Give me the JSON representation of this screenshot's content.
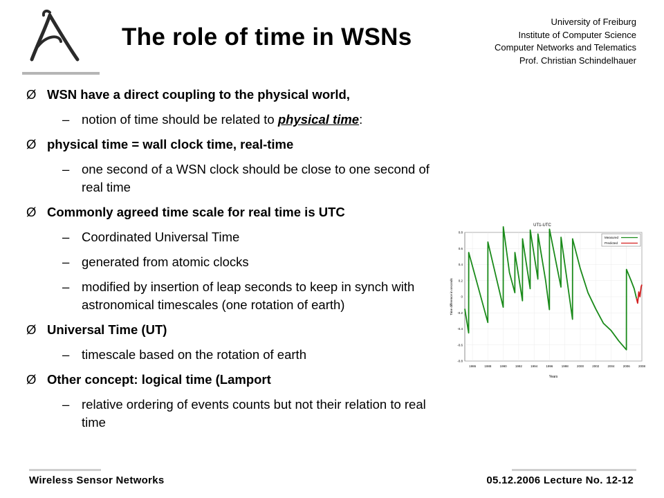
{
  "slide": {
    "title": "The role of time in WSNs",
    "affiliation": [
      "University of Freiburg",
      "Institute of Computer Science",
      "Computer Networks and Telematics",
      "Prof. Christian Schindelhauer"
    ]
  },
  "bullets": {
    "b1": "WSN have a direct coupling to the physical world,",
    "b1_sub1_pre": "notion of time should be related to ",
    "b1_sub1_em": "physical time",
    "b1_sub1_post": ":",
    "b2": "physical time = wall clock time, real-time",
    "b2_sub1": "one second of a WSN clock should be close to one second of real time",
    "b3": "Commonly agreed time scale for real time is UTC",
    "b3_sub1": "Coordinated Universal Time",
    "b3_sub2": "generated from atomic clocks",
    "b3_sub3": "modified by insertion of leap seconds to keep in synch with astronomical timescales (one rotation of earth)",
    "b4": "Universal Time (UT)",
    "b4_sub1": "timescale based on the rotation of earth",
    "b5": "Other concept: logical time (Lamport",
    "b5_sub1": "relative ordering of events counts but not their relation to real time",
    "bullet_glyph": "Ø",
    "dash_glyph": "–"
  },
  "chart_data": {
    "type": "line",
    "title": "UT1-UTC",
    "xlabel": "Years",
    "ylabel": "Time difference in seconds",
    "xlim": [
      1985,
      2008
    ],
    "ylim": [
      -0.8,
      0.8
    ],
    "xticks": [
      "1986",
      "1988",
      "1990",
      "1992",
      "1994",
      "1996",
      "1998",
      "2000",
      "2002",
      "2004",
      "2006",
      "2008"
    ],
    "yticks": [
      "0.8",
      "0.6",
      "0.4",
      "0.2",
      "0",
      "-0.2",
      "-0.4",
      "-0.6",
      "-0.8"
    ],
    "legend": "top-right",
    "series": [
      {
        "name": "Measured",
        "color": "#1a8a1a",
        "points": [
          [
            1985.0,
            -0.15
          ],
          [
            1985.5,
            -0.45
          ],
          [
            1985.51,
            0.55
          ],
          [
            1987.99,
            -0.32
          ],
          [
            1988.0,
            0.68
          ],
          [
            1989.99,
            -0.13
          ],
          [
            1990.0,
            0.87
          ],
          [
            1990.8,
            0.3
          ],
          [
            1991.5,
            0.05
          ],
          [
            1991.51,
            0.55
          ],
          [
            1992.49,
            -0.05
          ],
          [
            1992.5,
            0.72
          ],
          [
            1993.49,
            0.1
          ],
          [
            1993.5,
            0.83
          ],
          [
            1994.49,
            0.22
          ],
          [
            1994.5,
            0.78
          ],
          [
            1995.5,
            0.2
          ],
          [
            1995.99,
            -0.16
          ],
          [
            1996.0,
            0.84
          ],
          [
            1997.49,
            0.12
          ],
          [
            1997.5,
            0.74
          ],
          [
            1998.99,
            -0.28
          ],
          [
            1999.0,
            0.72
          ],
          [
            2000.0,
            0.35
          ],
          [
            2001.0,
            0.05
          ],
          [
            2002.0,
            -0.15
          ],
          [
            2003.0,
            -0.33
          ],
          [
            2004.0,
            -0.42
          ],
          [
            2005.0,
            -0.55
          ],
          [
            2005.99,
            -0.66
          ],
          [
            2006.0,
            0.34
          ],
          [
            2006.6,
            0.2
          ],
          [
            2007.0,
            0.1
          ],
          [
            2007.3,
            -0.02
          ]
        ]
      },
      {
        "name": "Predicted",
        "color": "#d21e1e",
        "points": [
          [
            2007.3,
            -0.02
          ],
          [
            2007.45,
            -0.08
          ],
          [
            2007.6,
            0.06
          ],
          [
            2007.75,
            0.0
          ],
          [
            2007.9,
            0.12
          ],
          [
            2008.0,
            0.15
          ]
        ]
      }
    ]
  },
  "footer": {
    "left": "Wireless  Sensor  Networks",
    "right": "05.12.2006  Lecture  No.  12-12"
  }
}
